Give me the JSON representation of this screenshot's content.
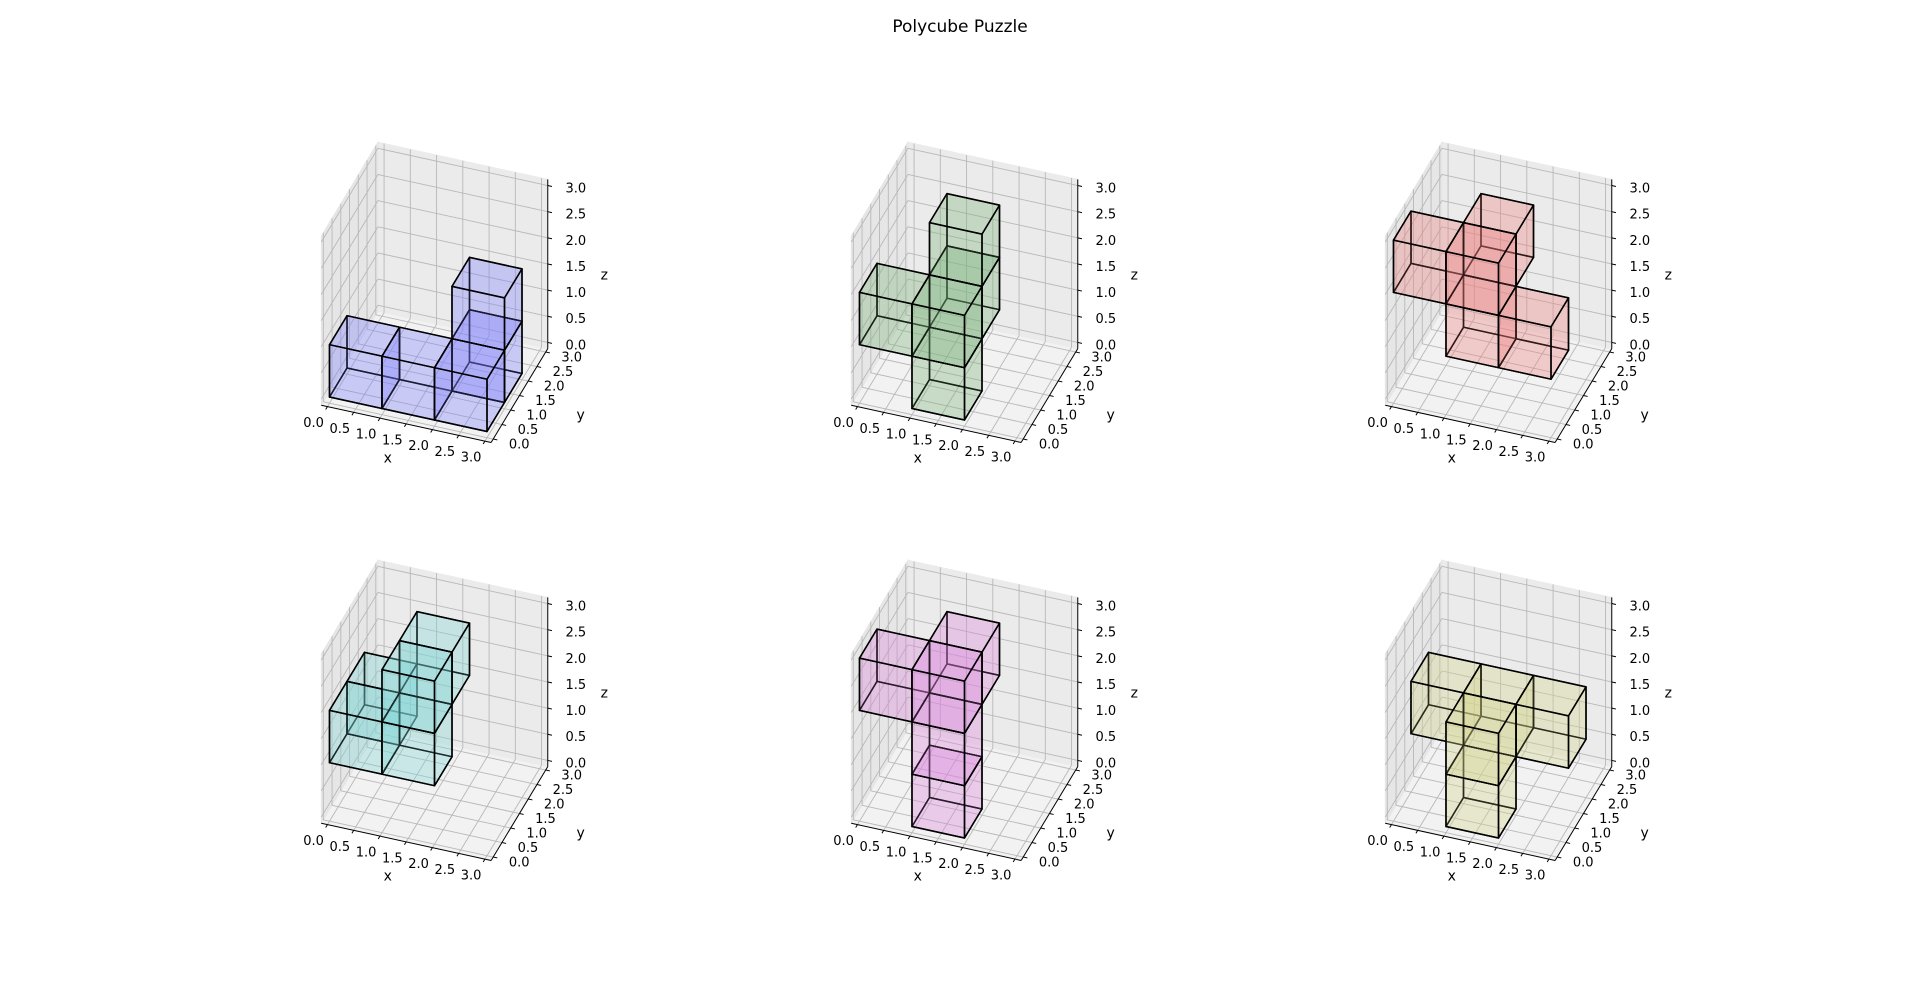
{
  "figure": {
    "title": "Polycube Puzzle"
  },
  "chart_data": [
    {
      "type": "voxel3d",
      "xlabel": "x",
      "ylabel": "y",
      "zlabel": "z",
      "xlim": [
        0,
        3
      ],
      "ylim": [
        0,
        3
      ],
      "zlim": [
        0,
        3
      ],
      "ticks": [
        "0.0",
        "0.5",
        "1.0",
        "1.5",
        "2.0",
        "2.5",
        "3.0"
      ],
      "grid": true,
      "color": "#8080ff",
      "cubes": [
        [
          0,
          0,
          0
        ],
        [
          1,
          0,
          0
        ],
        [
          2,
          0,
          0
        ],
        [
          2,
          1,
          0
        ],
        [
          2,
          1,
          1
        ]
      ]
    },
    {
      "type": "voxel3d",
      "xlabel": "x",
      "ylabel": "y",
      "zlabel": "z",
      "xlim": [
        0,
        3
      ],
      "ylim": [
        0,
        3
      ],
      "zlim": [
        0,
        3
      ],
      "ticks": [
        "0.0",
        "0.5",
        "1.0",
        "1.5",
        "2.0",
        "2.5",
        "3.0"
      ],
      "grid": true,
      "color": "#7fb27f",
      "cubes": [
        [
          0,
          0,
          1
        ],
        [
          1,
          0,
          1
        ],
        [
          1,
          0,
          0
        ],
        [
          1,
          1,
          1
        ],
        [
          1,
          1,
          2
        ]
      ]
    },
    {
      "type": "voxel3d",
      "xlabel": "x",
      "ylabel": "y",
      "zlabel": "z",
      "xlim": [
        0,
        3
      ],
      "ylim": [
        0,
        3
      ],
      "zlim": [
        0,
        3
      ],
      "ticks": [
        "0.0",
        "0.5",
        "1.0",
        "1.5",
        "2.0",
        "2.5",
        "3.0"
      ],
      "grid": true,
      "color": "#f08080",
      "cubes": [
        [
          0,
          0,
          2
        ],
        [
          1,
          0,
          2
        ],
        [
          1,
          0,
          1
        ],
        [
          2,
          0,
          1
        ],
        [
          1,
          1,
          2
        ]
      ]
    },
    {
      "type": "voxel3d",
      "xlabel": "x",
      "ylabel": "y",
      "zlabel": "z",
      "xlim": [
        0,
        3
      ],
      "ylim": [
        0,
        3
      ],
      "zlim": [
        0,
        3
      ],
      "ticks": [
        "0.0",
        "0.5",
        "1.0",
        "1.5",
        "2.0",
        "2.5",
        "3.0"
      ],
      "grid": true,
      "color": "#80d8d8",
      "cubes": [
        [
          0,
          0,
          1
        ],
        [
          1,
          0,
          1
        ],
        [
          1,
          0,
          2
        ],
        [
          1,
          1,
          2
        ],
        [
          0,
          1,
          1
        ]
      ]
    },
    {
      "type": "voxel3d",
      "xlabel": "x",
      "ylabel": "y",
      "zlabel": "z",
      "xlim": [
        0,
        3
      ],
      "ylim": [
        0,
        3
      ],
      "zlim": [
        0,
        3
      ],
      "ticks": [
        "0.0",
        "0.5",
        "1.0",
        "1.5",
        "2.0",
        "2.5",
        "3.0"
      ],
      "grid": true,
      "color": "#dd88dd",
      "cubes": [
        [
          0,
          0,
          2
        ],
        [
          1,
          0,
          2
        ],
        [
          1,
          0,
          1
        ],
        [
          1,
          0,
          0
        ],
        [
          1,
          1,
          2
        ]
      ]
    },
    {
      "type": "voxel3d",
      "xlabel": "x",
      "ylabel": "y",
      "zlabel": "z",
      "xlim": [
        0,
        3
      ],
      "ylim": [
        0,
        3
      ],
      "zlim": [
        0,
        3
      ],
      "ticks": [
        "0.0",
        "0.5",
        "1.0",
        "1.5",
        "2.0",
        "2.5",
        "3.0"
      ],
      "grid": true,
      "color": "#d8d890",
      "cubes": [
        [
          0,
          1,
          1
        ],
        [
          1,
          1,
          1
        ],
        [
          2,
          1,
          1
        ],
        [
          1,
          0,
          1
        ],
        [
          1,
          0,
          0
        ]
      ]
    }
  ]
}
